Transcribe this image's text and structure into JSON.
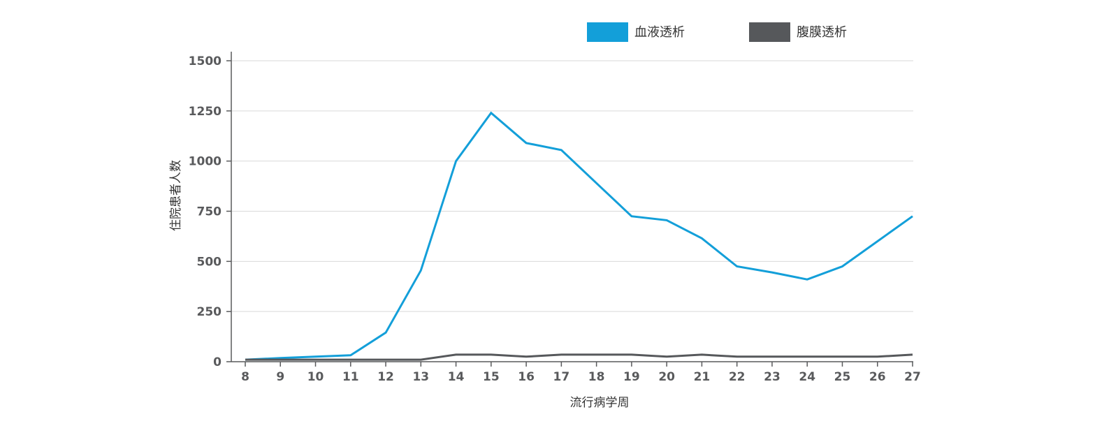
{
  "chart_data": {
    "type": "line",
    "xlabel": "流行病学周",
    "ylabel": "住院患者人数",
    "x": [
      8,
      9,
      10,
      11,
      12,
      13,
      14,
      15,
      16,
      17,
      18,
      19,
      20,
      21,
      22,
      23,
      24,
      25,
      26,
      27
    ],
    "x_tick_labels": [
      "8",
      "9",
      "10",
      "11",
      "12",
      "13",
      "14",
      "15",
      "16",
      "17",
      "18",
      "19",
      "20",
      "21",
      "22",
      "23",
      "24",
      "25",
      "26",
      "27"
    ],
    "ylim": [
      0,
      1500
    ],
    "y_ticks": [
      0,
      250,
      500,
      750,
      1000,
      1250,
      1500
    ],
    "y_tick_labels": [
      "0",
      "250",
      "500",
      "750",
      "1000",
      "1250",
      "1500"
    ],
    "grid": "horizontal",
    "legend_position": "top",
    "series": [
      {
        "name": "血液透析",
        "color": "#139fd9",
        "values": [
          10,
          18,
          25,
          32,
          145,
          455,
          1000,
          1240,
          1090,
          1055,
          890,
          725,
          705,
          615,
          475,
          445,
          410,
          475,
          600,
          725
        ]
      },
      {
        "name": "腹膜透析",
        "color": "#56585b",
        "values": [
          10,
          10,
          10,
          10,
          10,
          10,
          35,
          35,
          25,
          35,
          35,
          35,
          25,
          35,
          25,
          25,
          25,
          25,
          25,
          35
        ]
      }
    ]
  }
}
